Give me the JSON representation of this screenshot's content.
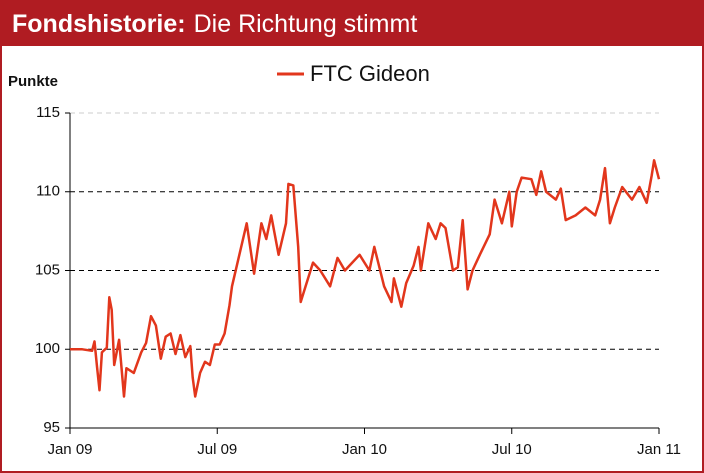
{
  "chart_data": {
    "type": "line",
    "title": "Fondshistorie:",
    "subtitle": "Die Richtung stimmt",
    "y_label": "Punkte",
    "xlim": [
      0,
      24
    ],
    "xticks": [
      {
        "value": 0,
        "label": "Jan 09"
      },
      {
        "value": 6,
        "label": "Jul 09"
      },
      {
        "value": 12,
        "label": "Jan 10"
      },
      {
        "value": 18,
        "label": "Jul 10"
      },
      {
        "value": 24,
        "label": "Jan 11"
      }
    ],
    "ylim": [
      95,
      115
    ],
    "yticks": [
      95,
      100,
      105,
      110,
      115
    ],
    "grid": true,
    "series": [
      {
        "name": "FTC Gideon",
        "color": "#e2361c",
        "x": [
          0,
          0.5,
          0.9,
          1.0,
          1.1,
          1.2,
          1.3,
          1.5,
          1.6,
          1.7,
          1.8,
          2.0,
          2.2,
          2.3,
          2.6,
          2.9,
          3.1,
          3.3,
          3.5,
          3.7,
          3.9,
          4.1,
          4.3,
          4.5,
          4.7,
          4.9,
          5.0,
          5.1,
          5.3,
          5.5,
          5.7,
          5.9,
          6.1,
          6.3,
          6.5,
          6.6,
          7.2,
          7.5,
          7.8,
          8.0,
          8.2,
          8.5,
          8.8,
          8.9,
          9.1,
          9.3,
          9.4,
          9.6,
          9.9,
          10.2,
          10.6,
          10.9,
          11.2,
          11.8,
          12.2,
          12.4,
          12.8,
          13.1,
          13.2,
          13.5,
          13.7,
          14.0,
          14.2,
          14.3,
          14.6,
          14.9,
          15.1,
          15.3,
          15.6,
          15.8,
          16.0,
          16.2,
          16.4,
          16.7,
          17.1,
          17.3,
          17.6,
          17.9,
          18.0,
          18.2,
          18.4,
          18.8,
          19.0,
          19.2,
          19.4,
          19.8,
          20.0,
          20.2,
          20.6,
          21.0,
          21.4,
          21.6,
          21.8,
          22.0,
          22.2,
          22.5,
          22.9,
          23.2,
          23.5,
          23.7,
          23.8,
          24.0
        ],
        "values": [
          100,
          100,
          99.9,
          100.5,
          98.9,
          97.4,
          99.8,
          100.1,
          103.3,
          102.5,
          99.0,
          100.6,
          97.0,
          98.8,
          98.5,
          99.8,
          100.4,
          102.1,
          101.5,
          99.4,
          100.8,
          101.0,
          99.7,
          100.9,
          99.5,
          100.2,
          98.2,
          97.0,
          98.5,
          99.2,
          99.0,
          100.3,
          100.3,
          101.0,
          102.8,
          104.0,
          108.0,
          104.8,
          108.0,
          107.0,
          108.5,
          106.0,
          108.0,
          110.5,
          110.4,
          106.5,
          103.0,
          104.0,
          105.5,
          105.0,
          104.0,
          105.8,
          105.0,
          106.0,
          105.0,
          106.5,
          104.0,
          103.0,
          104.5,
          102.7,
          104.2,
          105.3,
          106.5,
          105.0,
          108.0,
          107.0,
          108.0,
          107.7,
          105.0,
          105.2,
          108.2,
          103.8,
          105.0,
          106.0,
          107.3,
          109.5,
          108.0,
          110.0,
          107.8,
          110.0,
          110.9,
          110.8,
          109.8,
          111.3,
          110.0,
          109.5,
          110.2,
          108.2,
          108.5,
          109.0,
          108.5,
          109.5,
          111.5,
          108.0,
          109.0,
          110.3,
          109.5,
          110.3,
          109.3,
          111.0,
          112.0,
          110.8
        ]
      }
    ]
  }
}
